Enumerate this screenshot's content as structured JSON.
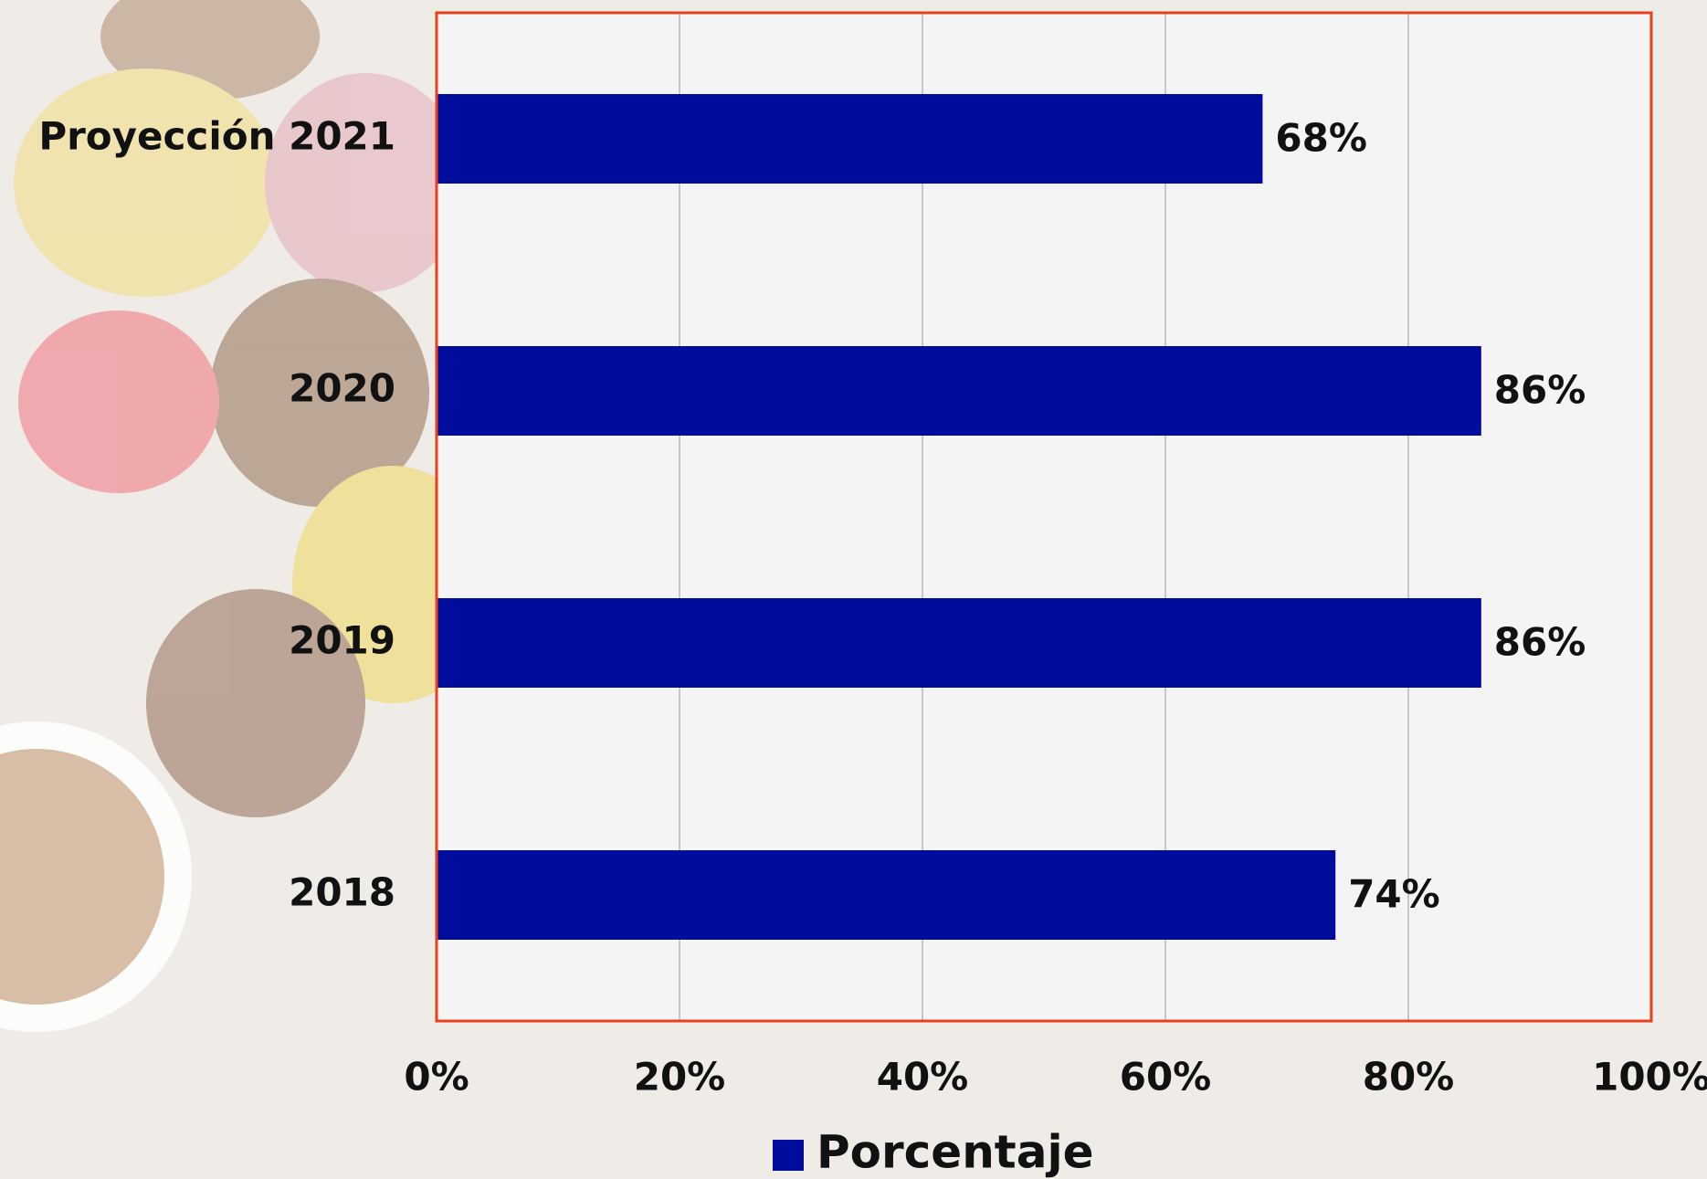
{
  "chart_data": {
    "type": "hbar",
    "categories": [
      "Proyección 2021",
      "2020",
      "2019",
      "2018"
    ],
    "series": [
      {
        "name": "Porcentaje",
        "color": "#000c9c",
        "values": [
          68,
          86,
          86,
          74
        ],
        "value_labels": [
          "68%",
          "86%",
          "86%",
          "74%"
        ]
      }
    ],
    "xlim": [
      0,
      100
    ],
    "xticks": [
      {
        "value": 0,
        "label": "0%"
      },
      {
        "value": 20,
        "label": "20%"
      },
      {
        "value": 40,
        "label": "40%"
      },
      {
        "value": 60,
        "label": "60%"
      },
      {
        "value": 80,
        "label": "80%"
      },
      {
        "value": 100,
        "label": "100%"
      }
    ],
    "grid": true,
    "legend": "bottom"
  }
}
